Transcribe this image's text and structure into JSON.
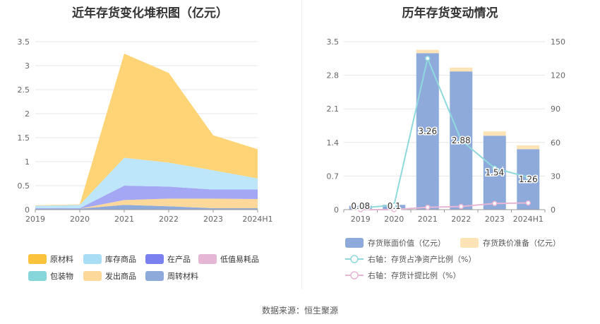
{
  "source_note": "数据来源：恒生聚源",
  "chart_data": [
    {
      "type": "area",
      "title": "近年存货变化堆积图（亿元）",
      "categories": [
        "2019",
        "2020",
        "2021",
        "2022",
        "2023",
        "2024H1"
      ],
      "y_ticks": [
        "0",
        "0.5",
        "1",
        "1.5",
        "2",
        "2.5",
        "3",
        "3.5"
      ],
      "ylim": [
        0,
        3.5
      ],
      "stacked": true,
      "grid": true,
      "legend_position": "bottom",
      "series": [
        {
          "name": "周转材料",
          "color": "#8eaadb",
          "values": [
            0.02,
            0.02,
            0.1,
            0.07,
            0.03,
            0.03
          ]
        },
        {
          "name": "包装物",
          "color": "#7fd6d8",
          "values": [
            0.0,
            0.0,
            0.0,
            0.0,
            0.0,
            0.0
          ]
        },
        {
          "name": "发出商品",
          "color": "#fcd89a",
          "values": [
            0.0,
            0.0,
            0.1,
            0.16,
            0.2,
            0.19
          ]
        },
        {
          "name": "低值易耗品",
          "color": "#eab8d8",
          "values": [
            0.0,
            0.0,
            0.0,
            0.0,
            0.0,
            0.0
          ]
        },
        {
          "name": "在产品",
          "color": "#a3a7f4",
          "values": [
            0.01,
            0.01,
            0.3,
            0.25,
            0.19,
            0.2
          ]
        },
        {
          "name": "库存商品",
          "color": "#bde6fa",
          "values": [
            0.05,
            0.07,
            0.58,
            0.5,
            0.4,
            0.23
          ]
        },
        {
          "name": "原材料",
          "color": "#fed477",
          "values": [
            0.01,
            0.01,
            2.17,
            1.87,
            0.73,
            0.61
          ]
        }
      ],
      "legend_order": [
        "原材料",
        "库存商品",
        "在产品",
        "低值易耗品",
        "包装物",
        "发出商品",
        "周转材料"
      ],
      "legend_colors": {
        "原材料": "#fbc23c",
        "库存商品": "#a9ddf6",
        "在产品": "#7b80f0",
        "低值易耗品": "#e5b6d6",
        "包装物": "#86d7d9",
        "发出商品": "#fcd89a",
        "周转材料": "#8eaadb"
      }
    },
    {
      "type": "bar",
      "title": "历年存货变动情况",
      "categories": [
        "2019",
        "2020",
        "2021",
        "2022",
        "2023",
        "2024H1"
      ],
      "y_ticks_left": [
        "0",
        "0.7",
        "1.4",
        "2.1",
        "2.8",
        "3.5"
      ],
      "y_ticks_right": [
        "0",
        "30",
        "60",
        "90",
        "120",
        "150"
      ],
      "ylim_left": [
        0,
        3.5
      ],
      "ylim_right": [
        0,
        150
      ],
      "grid": true,
      "legend_position": "bottom",
      "bars": [
        {
          "name": "存货账面价值（亿元）",
          "color": "#8eaadb",
          "values": [
            0.08,
            0.1,
            3.26,
            2.88,
            1.54,
            1.26
          ],
          "labels": [
            "0.08",
            "0.1",
            "3.26",
            "2.88",
            "1.54",
            "1.26"
          ]
        },
        {
          "name": "存货跌价准备（亿元）",
          "color": "#fde3b5",
          "values": [
            0.0,
            0.0,
            0.07,
            0.08,
            0.09,
            0.08
          ]
        }
      ],
      "lines": [
        {
          "name": "右轴：存货占净资产比例（%）",
          "color": "#8fd9dd",
          "values": [
            1.5,
            4.0,
            135,
            62,
            37,
            29
          ]
        },
        {
          "name": "右轴：存货计提比例（%）",
          "color": "#e8b6d5",
          "values": [
            0.0,
            0.0,
            2.1,
            2.8,
            5.5,
            6.0
          ]
        }
      ]
    }
  ]
}
